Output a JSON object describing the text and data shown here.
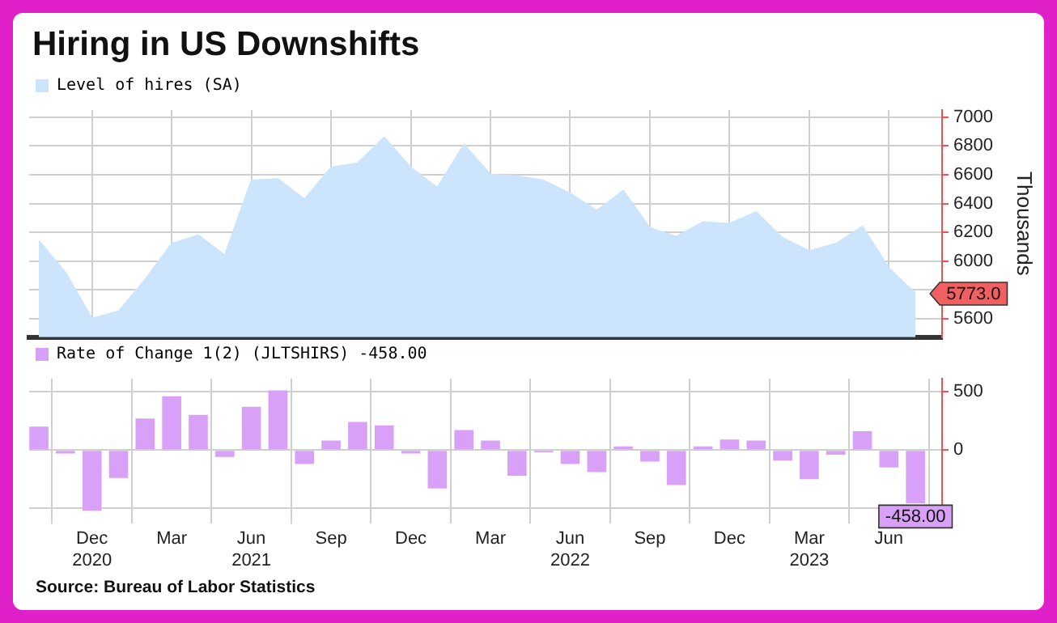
{
  "chart_data": [
    {
      "type": "area",
      "title": "Hiring in US Downshifts",
      "ylabel": "Thousands",
      "legend": "top left",
      "grid": true,
      "tick_labels": "y",
      "marker": "none",
      "x": [
        "2020-10",
        "2020-11",
        "2020-12",
        "2021-01",
        "2021-02",
        "2021-03",
        "2021-04",
        "2021-05",
        "2021-06",
        "2021-07",
        "2021-08",
        "2021-09",
        "2021-10",
        "2021-11",
        "2021-12",
        "2022-01",
        "2022-02",
        "2022-03",
        "2022-04",
        "2022-05",
        "2022-06",
        "2022-07",
        "2022-08",
        "2022-09",
        "2022-10",
        "2022-11",
        "2022-12",
        "2023-01",
        "2023-02",
        "2023-03",
        "2023-04",
        "2023-05",
        "2023-06",
        "2023-07"
      ],
      "series": [
        {
          "name": "Level of hires (SA)",
          "color": "#cce4fc",
          "values": [
            6140,
            5920,
            5600,
            5650,
            5870,
            6120,
            6180,
            6040,
            6560,
            6570,
            6430,
            6650,
            6680,
            6860,
            6650,
            6510,
            6810,
            6600,
            6590,
            6560,
            6470,
            6350,
            6490,
            6230,
            6170,
            6270,
            6260,
            6340,
            6160,
            6070,
            6120,
            6240,
            5950,
            5773
          ],
          "value_labels": [
            null,
            null,
            null,
            null,
            null,
            null,
            null,
            null,
            null,
            null,
            null,
            null,
            null,
            null,
            null,
            null,
            null,
            null,
            null,
            null,
            null,
            null,
            null,
            null,
            null,
            null,
            null,
            null,
            null,
            null,
            null,
            null,
            null,
            "5773.0"
          ]
        }
      ],
      "xlim": [
        "2020-09-20",
        "2023-08-01"
      ],
      "xticks": [
        {
          "value": "2020-12",
          "label": null
        },
        {
          "value": "2021-03",
          "label": null
        },
        {
          "value": "2021-06",
          "label": null
        },
        {
          "value": "2021-09",
          "label": null
        },
        {
          "value": "2021-12",
          "label": null
        },
        {
          "value": "2022-03",
          "label": null
        },
        {
          "value": "2022-06",
          "label": null
        },
        {
          "value": "2022-09",
          "label": null
        },
        {
          "value": "2022-12",
          "label": null
        },
        {
          "value": "2023-03",
          "label": null
        },
        {
          "value": "2023-06",
          "label": null
        }
      ],
      "ylim": [
        5470,
        7050
      ],
      "yticks": [
        5600,
        5800,
        6000,
        6200,
        6400,
        6600,
        6800,
        7000
      ]
    },
    {
      "type": "bar",
      "legend": "top left",
      "grid": true,
      "annotations": [
        "Source: Bureau of Labor Statistics"
      ],
      "x": [
        "2020-10",
        "2020-11",
        "2020-12",
        "2021-01",
        "2021-02",
        "2021-03",
        "2021-04",
        "2021-05",
        "2021-06",
        "2021-07",
        "2021-08",
        "2021-09",
        "2021-10",
        "2021-11",
        "2021-12",
        "2022-01",
        "2022-02",
        "2022-03",
        "2022-04",
        "2022-05",
        "2022-06",
        "2022-07",
        "2022-08",
        "2022-09",
        "2022-10",
        "2022-11",
        "2022-12",
        "2023-01",
        "2023-02",
        "2023-03",
        "2023-04",
        "2023-05",
        "2023-06",
        "2023-07"
      ],
      "series": [
        {
          "name": "Rate of Change 1(2) (JLTSHIRS) -458.00",
          "color": "#d9a0f8",
          "values": [
            200,
            -30,
            -520,
            -240,
            270,
            460,
            300,
            -60,
            370,
            510,
            -120,
            80,
            240,
            210,
            -30,
            -330,
            170,
            80,
            -220,
            -20,
            -120,
            -190,
            30,
            -100,
            -300,
            30,
            90,
            80,
            -90,
            -250,
            -40,
            160,
            -150,
            -458
          ],
          "value_labels": [
            null,
            null,
            null,
            null,
            null,
            null,
            null,
            null,
            null,
            null,
            null,
            null,
            null,
            null,
            null,
            null,
            null,
            null,
            null,
            null,
            null,
            null,
            null,
            null,
            null,
            null,
            null,
            null,
            null,
            null,
            null,
            null,
            null,
            "-458.00"
          ]
        }
      ],
      "xlim": [
        "2020-09-20",
        "2023-08-01"
      ],
      "xticks": [
        {
          "value": "2020-12",
          "label": "Dec\n2020"
        },
        {
          "value": "2021-03",
          "label": "Mar"
        },
        {
          "value": "2021-06",
          "label": "Jun\n2021"
        },
        {
          "value": "2021-09",
          "label": "Sep"
        },
        {
          "value": "2021-12",
          "label": "Dec"
        },
        {
          "value": "2022-03",
          "label": "Mar"
        },
        {
          "value": "2022-06",
          "label": "Jun\n2022"
        },
        {
          "value": "2022-09",
          "label": "Sep"
        },
        {
          "value": "2022-12",
          "label": "Dec"
        },
        {
          "value": "2023-03",
          "label": "Mar\n2023"
        },
        {
          "value": "2023-06",
          "label": "Jun"
        }
      ],
      "ylim": [
        -630,
        610
      ],
      "yticks": [
        {
          "value": -500,
          "label": null
        },
        0,
        500
      ]
    }
  ]
}
